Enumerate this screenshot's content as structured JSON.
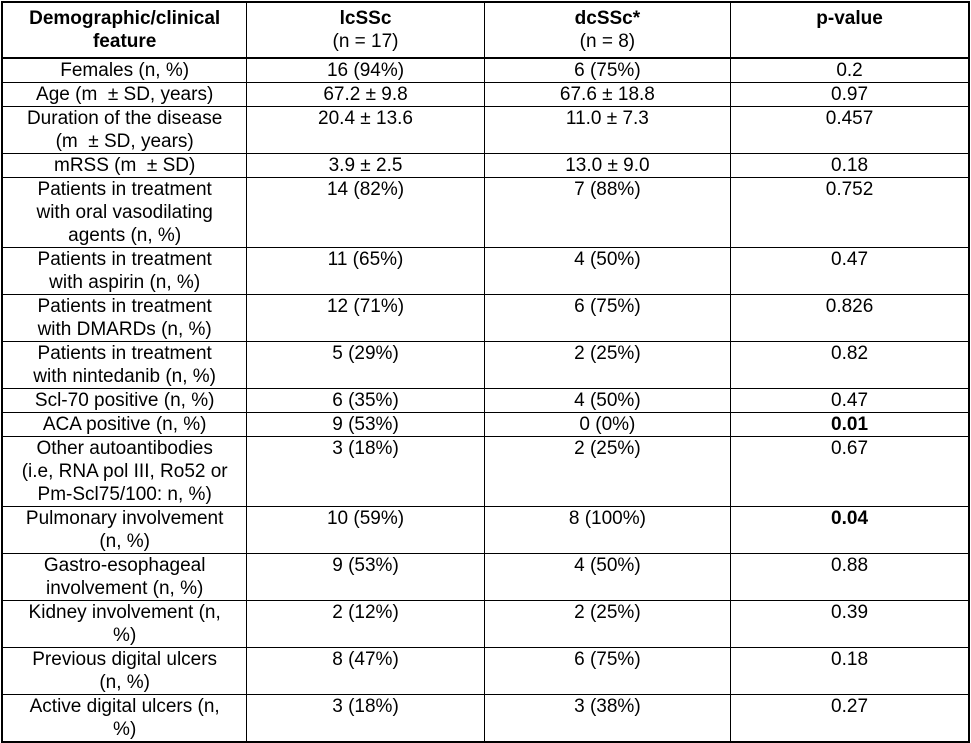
{
  "chart_data": {
    "type": "table",
    "columns": [
      "Demographic/clinical feature",
      "lcSSc (n = 17)",
      "dcSSc* (n = 8)",
      "p-value"
    ],
    "header": {
      "feature": "Demographic/clinical\nfeature",
      "lcssc_name": "lcSSc",
      "lcssc_n": "(n = 17)",
      "dcssc_name": "dcSSc*",
      "dcssc_n": "(n = 8)",
      "pvalue": "p-value"
    },
    "rows": [
      {
        "feature": "Females (n, %)",
        "lcssc": "16 (94%)",
        "dcssc": "6 (75%)",
        "pvalue": "0.2",
        "pvalue_bold": false
      },
      {
        "feature": "Age (m  ± SD, years)",
        "lcssc": "67.2 ± 9.8",
        "dcssc": "67.6 ± 18.8",
        "pvalue": "0.97",
        "pvalue_bold": false
      },
      {
        "feature": "Duration of the disease\n(m  ± SD, years)",
        "lcssc": "20.4 ± 13.6",
        "dcssc": "11.0 ± 7.3",
        "pvalue": "0.457",
        "pvalue_bold": false
      },
      {
        "feature": "mRSS (m  ± SD)",
        "lcssc": "3.9 ± 2.5",
        "dcssc": "13.0 ± 9.0",
        "pvalue": "0.18",
        "pvalue_bold": false
      },
      {
        "feature": "Patients in treatment\nwith oral vasodilating\nagents (n, %)",
        "lcssc": "14 (82%)",
        "dcssc": "7 (88%)",
        "pvalue": "0.752",
        "pvalue_bold": false
      },
      {
        "feature": "Patients in treatment\nwith aspirin (n, %)",
        "lcssc": "11 (65%)",
        "dcssc": "4 (50%)",
        "pvalue": "0.47",
        "pvalue_bold": false
      },
      {
        "feature": "Patients in treatment\nwith DMARDs (n, %)",
        "lcssc": "12 (71%)",
        "dcssc": "6 (75%)",
        "pvalue": "0.826",
        "pvalue_bold": false
      },
      {
        "feature": "Patients in treatment\nwith nintedanib (n, %)",
        "lcssc": "5 (29%)",
        "dcssc": "2 (25%)",
        "pvalue": "0.82",
        "pvalue_bold": false
      },
      {
        "feature": "Scl-70 positive (n, %)",
        "lcssc": "6 (35%)",
        "dcssc": "4 (50%)",
        "pvalue": "0.47",
        "pvalue_bold": false
      },
      {
        "feature": "ACA positive (n, %)",
        "lcssc": "9 (53%)",
        "dcssc": "0 (0%)",
        "pvalue": "0.01",
        "pvalue_bold": true
      },
      {
        "feature": "Other autoantibodies\n(i.e, RNA pol III, Ro52 or\nPm-Scl75/100: n, %)",
        "lcssc": "3 (18%)",
        "dcssc": "2 (25%)",
        "pvalue": "0.67",
        "pvalue_bold": false
      },
      {
        "feature": "Pulmonary involvement\n(n, %)",
        "lcssc": "10 (59%)",
        "dcssc": "8 (100%)",
        "pvalue": "0.04",
        "pvalue_bold": true
      },
      {
        "feature": "Gastro-esophageal\ninvolvement (n, %)",
        "lcssc": "9 (53%)",
        "dcssc": "4 (50%)",
        "pvalue": "0.88",
        "pvalue_bold": false
      },
      {
        "feature": "Kidney involvement (n,\n%)",
        "lcssc": "2 (12%)",
        "dcssc": "2 (25%)",
        "pvalue": "0.39",
        "pvalue_bold": false
      },
      {
        "feature": "Previous digital ulcers\n(n, %)",
        "lcssc": "8 (47%)",
        "dcssc": "6 (75%)",
        "pvalue": "0.18",
        "pvalue_bold": false
      },
      {
        "feature": "Active digital ulcers (n,\n%)",
        "lcssc": "3 (18%)",
        "dcssc": "3 (38%)",
        "pvalue": "0.27",
        "pvalue_bold": false
      }
    ]
  }
}
